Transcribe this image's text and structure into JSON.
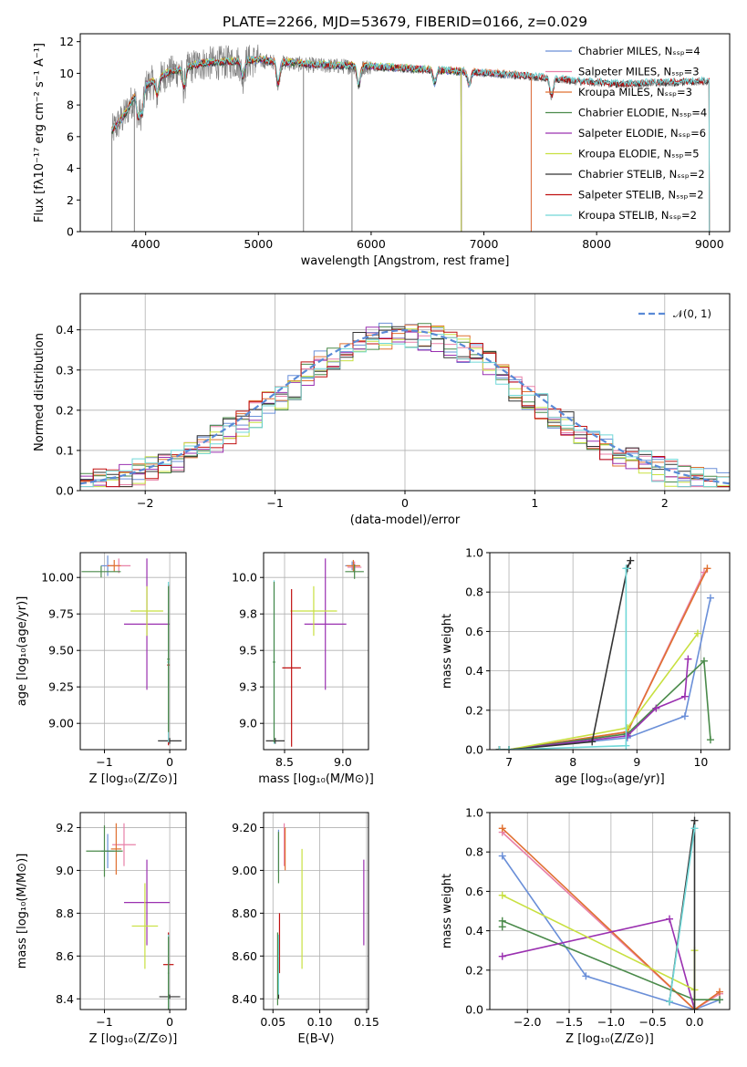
{
  "chart_data": [
    {
      "id": "spectrum",
      "type": "line",
      "title": "PLATE=2266, MJD=53679, FIBERID=0166, z=0.029",
      "xlabel": "wavelength [Angstrom, rest frame]",
      "ylabel": "Flux [fλ10⁻¹⁷ erg cm⁻² s⁻¹ A⁻¹]",
      "xlim": [
        3420,
        9180
      ],
      "ylim": [
        0,
        12.5
      ],
      "xticks": [
        4000,
        5000,
        6000,
        7000,
        8000,
        9000
      ],
      "yticks": [
        0,
        2,
        4,
        6,
        8,
        10,
        12
      ],
      "legend_position": "top-right",
      "data_profile": {
        "x": [
          3700,
          3800,
          3900,
          4000,
          4200,
          4500,
          5000,
          5500,
          6000,
          6500,
          7000,
          7400,
          7800,
          8200,
          8600,
          9000
        ],
        "y": [
          6.3,
          7.2,
          8.5,
          9.2,
          10.0,
          10.6,
          10.8,
          10.5,
          10.4,
          10.2,
          10.0,
          9.8,
          9.5,
          9.3,
          9.4,
          9.5
        ]
      },
      "series": [
        {
          "name": "Chabrier MILES, Nₛₛₚ=4",
          "color": "#6a8fd8",
          "xmax": 7420
        },
        {
          "name": "Salpeter MILES, Nₛₛₚ=3",
          "color": "#e880a8",
          "xmax": 7420
        },
        {
          "name": "Kroupa MILES, Nₛₛₚ=3",
          "color": "#e07030",
          "xmax": 7420
        },
        {
          "name": "Chabrier ELODIE, Nₛₛₚ=4",
          "color": "#4a8a4a",
          "xmax": 6800
        },
        {
          "name": "Salpeter ELODIE, Nₛₛₚ=6",
          "color": "#9a30b0",
          "xmax": 6800
        },
        {
          "name": "Kroupa ELODIE, Nₛₛₚ=5",
          "color": "#c8e040",
          "xmax": 6800
        },
        {
          "name": "Chabrier STELIB, Nₛₛₚ=2",
          "color": "#333333",
          "xmax": 9000
        },
        {
          "name": "Salpeter STELIB, Nₛₛₚ=2",
          "color": "#c01010",
          "xmax": 9000
        },
        {
          "name": "Kroupa STELIB, Nₛₛₚ=2",
          "color": "#70d8d8",
          "xmax": 9000
        }
      ],
      "data_color": "#808080"
    },
    {
      "id": "residuals",
      "type": "line",
      "xlabel": "(data-model)/error",
      "ylabel": "Normed distribution",
      "xlim": [
        -2.5,
        2.5
      ],
      "ylim": [
        0,
        0.49
      ],
      "xticks": [
        -2,
        -1,
        0,
        1,
        2
      ],
      "yticks": [
        0.0,
        0.1,
        0.2,
        0.3,
        0.4
      ],
      "grid": true,
      "legend_position": "top-right",
      "gaussian_label": "𝒩(0, 1)",
      "gaussian_color": "#5a8ad6",
      "bin_width": 0.1
    },
    {
      "id": "age-vs-Z",
      "type": "scatter",
      "xlabel": "Z [log₁₀(Z/Z⊙)]",
      "ylabel": "age  [log₁₀(age/yr)]",
      "xlim": [
        -1.37,
        0.25
      ],
      "ylim": [
        8.82,
        10.17
      ],
      "xticks": [
        -1,
        0
      ],
      "yticks": [
        9.0,
        9.25,
        9.5,
        9.75,
        10.0
      ],
      "grid": true,
      "points": [
        {
          "x": -0.95,
          "y": 10.08,
          "xerr": 0.1,
          "yerr": 0.07,
          "c": "#6a8fd8"
        },
        {
          "x": -0.78,
          "y": 10.08,
          "xerr": 0.18,
          "yerr": 0.05,
          "c": "#e880a8"
        },
        {
          "x": -0.85,
          "y": 10.08,
          "xerr": 0.1,
          "yerr": 0.04,
          "c": "#e07030"
        },
        {
          "x": -1.05,
          "y": 10.04,
          "xerr": 0.3,
          "yerr": 0.04,
          "c": "#4a8a4a"
        },
        {
          "x": -0.35,
          "y": 9.68,
          "xerr": 0.35,
          "yerr": 0.45,
          "c": "#9a30b0"
        },
        {
          "x": -0.35,
          "y": 9.77,
          "xerr": 0.25,
          "yerr": 0.17,
          "c": "#c8e040"
        },
        {
          "x": 0.0,
          "y": 8.88,
          "xerr": 0.18,
          "yerr": 0.02,
          "c": "#333333"
        },
        {
          "x": -0.02,
          "y": 9.4,
          "xerr": 0.02,
          "yerr": 0.55,
          "c": "#c01010"
        },
        {
          "x": -0.02,
          "y": 9.42,
          "xerr": 0.02,
          "yerr": 0.55,
          "c": "#70d8d8"
        },
        {
          "x": -0.02,
          "y": 9.44,
          "xerr": 0.02,
          "yerr": 0.5,
          "c": "#4a8a4a"
        }
      ]
    },
    {
      "id": "age-vs-mass",
      "type": "scatter",
      "xlabel": "mass [log₁₀(M/M⊙)]",
      "ylabel": "",
      "xlim": [
        8.32,
        9.22
      ],
      "ylim": [
        8.82,
        10.17
      ],
      "xticks": [
        8.5,
        9.0
      ],
      "yticks": [
        9.0,
        9.25,
        9.5,
        9.75,
        10.0
      ],
      "grid": true,
      "points": [
        {
          "x": 9.08,
          "y": 10.08,
          "xerr": 0.06,
          "yerr": 0.03,
          "c": "#6a8fd8"
        },
        {
          "x": 9.1,
          "y": 10.07,
          "xerr": 0.06,
          "yerr": 0.04,
          "c": "#e880a8"
        },
        {
          "x": 9.09,
          "y": 10.08,
          "xerr": 0.06,
          "yerr": 0.04,
          "c": "#e07030"
        },
        {
          "x": 9.1,
          "y": 10.04,
          "xerr": 0.08,
          "yerr": 0.05,
          "c": "#4a8a4a"
        },
        {
          "x": 8.85,
          "y": 9.68,
          "xerr": 0.18,
          "yerr": 0.45,
          "c": "#9a30b0"
        },
        {
          "x": 8.75,
          "y": 9.77,
          "xerr": 0.2,
          "yerr": 0.17,
          "c": "#c8e040"
        },
        {
          "x": 8.42,
          "y": 8.88,
          "xerr": 0.08,
          "yerr": 0.02,
          "c": "#333333"
        },
        {
          "x": 8.56,
          "y": 9.38,
          "xerr": 0.08,
          "yerr": 0.54,
          "c": "#c01010"
        },
        {
          "x": 8.41,
          "y": 9.42,
          "xerr": 0.01,
          "yerr": 0.56,
          "c": "#70d8d8"
        },
        {
          "x": 8.41,
          "y": 9.42,
          "xerr": 0.01,
          "yerr": 0.55,
          "c": "#4a8a4a"
        }
      ]
    },
    {
      "id": "massweight-vs-age",
      "type": "line",
      "xlabel": "age  [log₁₀(age/yr)]",
      "ylabel": "mass weight",
      "xlim": [
        6.7,
        10.45
      ],
      "ylim": [
        0,
        1.0
      ],
      "xticks": [
        7,
        8,
        9,
        10
      ],
      "yticks": [
        0.0,
        0.2,
        0.4,
        0.6,
        0.8,
        1.0
      ],
      "grid": true,
      "series": [
        {
          "c": "#6a8fd8",
          "x": [
            6.85,
            7.0,
            8.85,
            9.75,
            10.15
          ],
          "y": [
            0.0,
            0.0,
            0.06,
            0.17,
            0.77
          ]
        },
        {
          "c": "#e880a8",
          "x": [
            6.85,
            7.0,
            8.85,
            10.05
          ],
          "y": [
            0.0,
            0.0,
            0.09,
            0.9
          ]
        },
        {
          "c": "#e07030",
          "x": [
            6.85,
            7.0,
            8.85,
            10.1
          ],
          "y": [
            0.0,
            0.0,
            0.09,
            0.92
          ]
        },
        {
          "c": "#4a8a4a",
          "x": [
            6.85,
            7.0,
            8.85,
            10.05,
            10.15
          ],
          "y": [
            0.0,
            0.0,
            0.08,
            0.45,
            0.05
          ]
        },
        {
          "c": "#9a30b0",
          "x": [
            6.85,
            7.0,
            8.85,
            9.3,
            9.75,
            9.8
          ],
          "y": [
            0.0,
            0.0,
            0.07,
            0.21,
            0.27,
            0.46
          ]
        },
        {
          "c": "#c8e040",
          "x": [
            6.85,
            7.0,
            8.85,
            9.95
          ],
          "y": [
            0.0,
            0.0,
            0.11,
            0.59
          ]
        },
        {
          "c": "#333333",
          "x": [
            6.85,
            7.0,
            8.3,
            8.85,
            8.9
          ],
          "y": [
            0.0,
            0.0,
            0.04,
            0.92,
            0.96
          ]
        },
        {
          "c": "#70d8d8",
          "x": [
            6.85,
            7.0,
            8.83,
            8.83
          ],
          "y": [
            0.0,
            0.0,
            0.02,
            0.92
          ]
        }
      ]
    },
    {
      "id": "mass-vs-Z",
      "type": "scatter",
      "xlabel": "Z [log₁₀(Z/Z⊙)]",
      "ylabel": "mass [log₁₀(M/M⊙)]",
      "xlim": [
        -1.37,
        0.25
      ],
      "ylim": [
        8.35,
        9.27
      ],
      "xticks": [
        -1,
        0
      ],
      "yticks": [
        8.4,
        8.6,
        8.8,
        9.0,
        9.2
      ],
      "grid": true,
      "points": [
        {
          "x": -0.95,
          "y": 9.09,
          "xerr": 0.1,
          "yerr": 0.08,
          "c": "#6a8fd8"
        },
        {
          "x": -0.7,
          "y": 9.12,
          "xerr": 0.18,
          "yerr": 0.1,
          "c": "#e880a8"
        },
        {
          "x": -0.82,
          "y": 9.1,
          "xerr": 0.08,
          "yerr": 0.12,
          "c": "#e07030"
        },
        {
          "x": -1.0,
          "y": 9.09,
          "xerr": 0.28,
          "yerr": 0.12,
          "c": "#4a8a4a"
        },
        {
          "x": -0.35,
          "y": 8.85,
          "xerr": 0.35,
          "yerr": 0.2,
          "c": "#9a30b0"
        },
        {
          "x": -0.38,
          "y": 8.74,
          "xerr": 0.2,
          "yerr": 0.2,
          "c": "#c8e040"
        },
        {
          "x": 0.0,
          "y": 8.41,
          "xerr": 0.16,
          "yerr": 0.01,
          "c": "#333333"
        },
        {
          "x": -0.02,
          "y": 8.56,
          "xerr": 0.08,
          "yerr": 0.15,
          "c": "#c01010"
        },
        {
          "x": -0.02,
          "y": 8.52,
          "xerr": 0.01,
          "yerr": 0.18,
          "c": "#70d8d8"
        },
        {
          "x": -0.02,
          "y": 8.52,
          "xerr": 0.01,
          "yerr": 0.17,
          "c": "#4a8a4a"
        }
      ]
    },
    {
      "id": "mass-vs-ebv",
      "type": "scatter",
      "xlabel": "E(B-V)",
      "ylabel": "",
      "xlim": [
        0.04,
        0.152
      ],
      "ylim": [
        8.35,
        9.27
      ],
      "xticks": [
        0.05,
        0.1,
        0.15
      ],
      "yticks": [
        8.4,
        8.6,
        8.8,
        9.0,
        9.2
      ],
      "grid": true,
      "points": [
        {
          "x": 0.056,
          "y": 9.09,
          "xerr": 0.0,
          "yerr": 0.1,
          "c": "#6a8fd8"
        },
        {
          "x": 0.062,
          "y": 9.12,
          "xerr": 0.0,
          "yerr": 0.1,
          "c": "#e880a8"
        },
        {
          "x": 0.063,
          "y": 9.1,
          "xerr": 0.0,
          "yerr": 0.1,
          "c": "#e07030"
        },
        {
          "x": 0.056,
          "y": 9.06,
          "xerr": 0.0,
          "yerr": 0.12,
          "c": "#4a8a4a"
        },
        {
          "x": 0.147,
          "y": 8.85,
          "xerr": 0.0,
          "yerr": 0.2,
          "c": "#9a30b0"
        },
        {
          "x": 0.081,
          "y": 8.82,
          "xerr": 0.0,
          "yerr": 0.28,
          "c": "#c8e040"
        },
        {
          "x": 0.056,
          "y": 8.41,
          "xerr": 0.0,
          "yerr": 0.01,
          "c": "#333333"
        },
        {
          "x": 0.057,
          "y": 8.66,
          "xerr": 0.0,
          "yerr": 0.14,
          "c": "#c01010"
        },
        {
          "x": 0.056,
          "y": 8.56,
          "xerr": 0.0,
          "yerr": 0.14,
          "c": "#70d8d8"
        },
        {
          "x": 0.055,
          "y": 8.54,
          "xerr": 0.0,
          "yerr": 0.17,
          "c": "#4a8a4a"
        }
      ]
    },
    {
      "id": "massweight-vs-Z",
      "type": "line",
      "xlabel": "Z [log₁₀(Z/Z⊙)]",
      "ylabel": "mass weight",
      "xlim": [
        -2.45,
        0.42
      ],
      "ylim": [
        0,
        1.0
      ],
      "xticks": [
        -2.0,
        -1.5,
        -1.0,
        -0.5,
        0.0
      ],
      "yticks": [
        0.0,
        0.2,
        0.4,
        0.6,
        0.8,
        1.0
      ],
      "grid": true,
      "series": [
        {
          "c": "#6a8fd8",
          "x": [
            -2.3,
            -1.3,
            0.0,
            0.3
          ],
          "y": [
            0.78,
            0.17,
            0.0,
            0.05
          ]
        },
        {
          "c": "#e880a8",
          "x": [
            -2.3,
            0.0,
            0.3
          ],
          "y": [
            0.9,
            0.0,
            0.08
          ]
        },
        {
          "c": "#e07030",
          "x": [
            -2.3,
            0.0,
            0.3
          ],
          "y": [
            0.92,
            0.0,
            0.09
          ]
        },
        {
          "c": "#4a8a4a",
          "x": [
            -2.3,
            -2.3,
            0.0,
            0.3
          ],
          "y": [
            0.42,
            0.45,
            0.05,
            0.05
          ]
        },
        {
          "c": "#9a30b0",
          "x": [
            -2.3,
            -0.3,
            0.0
          ],
          "y": [
            0.27,
            0.46,
            0.0
          ]
        },
        {
          "c": "#c8e040",
          "x": [
            -2.3,
            0.0,
            0.0,
            0.0
          ],
          "y": [
            0.58,
            0.1,
            0.3,
            0.0
          ]
        },
        {
          "c": "#333333",
          "x": [
            -0.3,
            0.0,
            0.0
          ],
          "y": [
            0.04,
            0.96,
            0.0
          ]
        },
        {
          "c": "#70d8d8",
          "x": [
            -0.3,
            0.0
          ],
          "y": [
            0.04,
            0.92
          ]
        }
      ]
    }
  ]
}
